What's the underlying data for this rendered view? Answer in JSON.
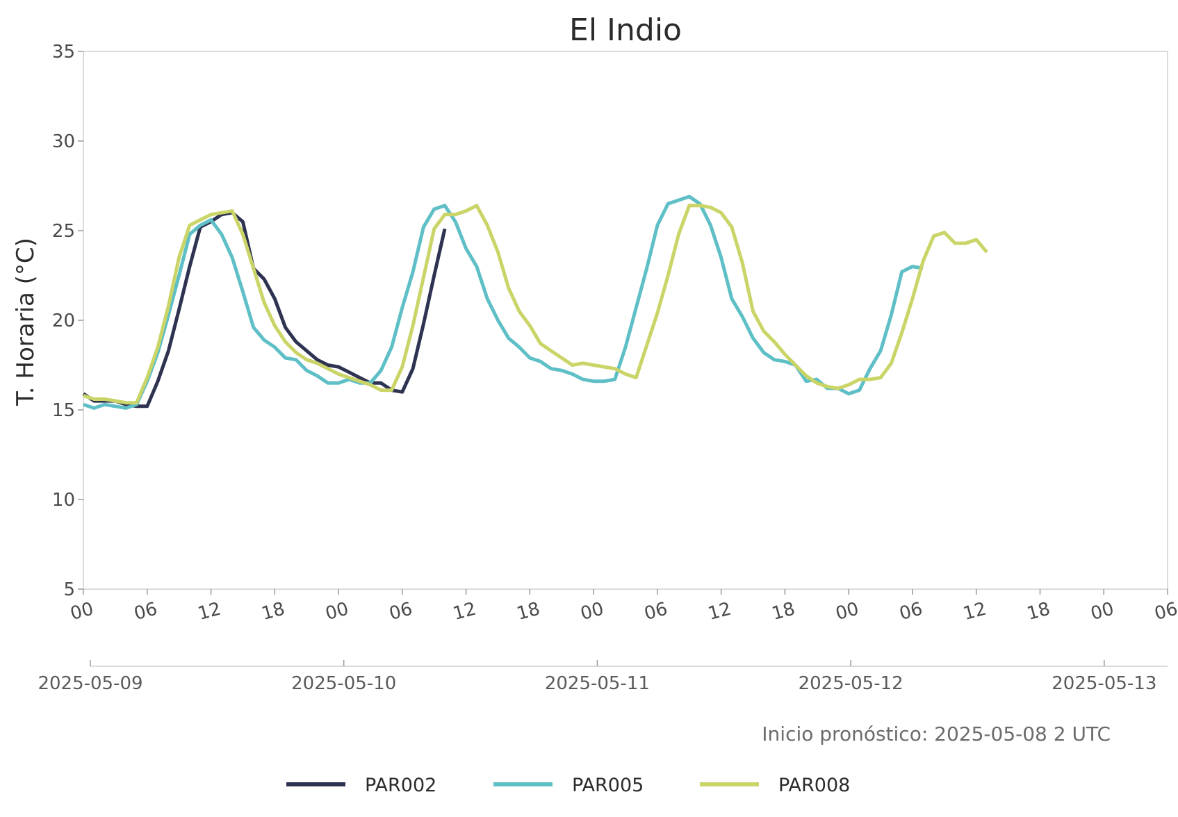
{
  "chart_data": {
    "type": "line",
    "title": "El Indio",
    "ylabel": "T. Horaria (°C)",
    "xlabel": "",
    "ylim": [
      5,
      35
    ],
    "yticks": [
      "5",
      "10",
      "15",
      "20",
      "25",
      "30",
      "35"
    ],
    "xrange": [
      "2025-05-09 00:00",
      "2025-05-13 06:00"
    ],
    "hour_tick_labels": [
      "00",
      "06",
      "12",
      "18",
      "00",
      "06",
      "12",
      "18",
      "00",
      "06",
      "12",
      "18",
      "00",
      "06",
      "12",
      "18",
      "00",
      "06"
    ],
    "date_tick_labels": [
      "2025-05-09",
      "2025-05-10",
      "2025-05-11",
      "2025-05-12",
      "2025-05-13"
    ],
    "grid": false,
    "legend_position": "bottom",
    "annotation": "Inicio pronóstico: 2025-05-08 2 UTC",
    "series": [
      {
        "name": "PAR002",
        "color": "#2e3352",
        "start": "2025-05-09 00:00",
        "step_hours": 1,
        "values": [
          15.9,
          15.5,
          15.5,
          15.5,
          15.3,
          15.2,
          15.2,
          16.6,
          18.3,
          20.6,
          23,
          25.2,
          25.5,
          25.9,
          26,
          25.5,
          22.9,
          22.3,
          21.2,
          19.6,
          18.8,
          18.3,
          17.8,
          17.5,
          17.4,
          17.1,
          16.8,
          16.5,
          16.5,
          16.1,
          16,
          17.3,
          19.8,
          22.5,
          25.1
        ]
      },
      {
        "name": "PAR005",
        "color": "#5ebfc6",
        "start": "2025-05-09 00:00",
        "step_hours": 1,
        "values": [
          15.3,
          15.1,
          15.3,
          15.2,
          15.1,
          15.3,
          16.6,
          18.2,
          20.3,
          22.5,
          24.8,
          25.3,
          25.6,
          24.8,
          23.5,
          21.6,
          19.6,
          18.9,
          18.5,
          17.9,
          17.8,
          17.2,
          16.9,
          16.5,
          16.5,
          16.7,
          16.5,
          16.5,
          17.2,
          18.5,
          20.7,
          22.7,
          25.2,
          26.2,
          26.4,
          25.5,
          24,
          23,
          21.2,
          20,
          19,
          18.5,
          17.9,
          17.7,
          17.3,
          17.2,
          17,
          16.7,
          16.6,
          16.6,
          16.7,
          18.5,
          20.7,
          22.9,
          25.3,
          26.5,
          26.7,
          26.9,
          26.5,
          25.3,
          23.5,
          21.2,
          20.2,
          19,
          18.2,
          17.8,
          17.7,
          17.5,
          16.6,
          16.7,
          16.2,
          16.2,
          15.9,
          16.1,
          17.3,
          18.3,
          20.3,
          22.7,
          23,
          22.9
        ]
      },
      {
        "name": "PAR008",
        "color": "#cad467",
        "start": "2025-05-09 00:00",
        "step_hours": 1,
        "values": [
          15.8,
          15.6,
          15.6,
          15.5,
          15.4,
          15.4,
          16.8,
          18.5,
          20.8,
          23.5,
          25.3,
          25.6,
          25.9,
          26,
          26.1,
          24.8,
          22.9,
          21,
          19.7,
          18.8,
          18.2,
          17.8,
          17.6,
          17.3,
          17,
          16.8,
          16.6,
          16.4,
          16.1,
          16.1,
          17.4,
          19.7,
          22.4,
          25.1,
          25.9,
          25.9,
          26.1,
          26.4,
          25.3,
          23.8,
          21.8,
          20.5,
          19.7,
          18.7,
          18.3,
          17.9,
          17.5,
          17.6,
          17.5,
          17.4,
          17.3,
          17,
          16.8,
          18.6,
          20.4,
          22.5,
          24.8,
          26.4,
          26.4,
          26.3,
          26,
          25.2,
          23.2,
          20.5,
          19.4,
          18.8,
          18.1,
          17.5,
          16.9,
          16.5,
          16.3,
          16.2,
          16.4,
          16.7,
          16.7,
          16.8,
          17.6,
          19.3,
          21.2,
          23.3,
          24.7,
          24.9,
          24.3,
          24.3,
          24.5,
          23.8
        ]
      }
    ]
  }
}
